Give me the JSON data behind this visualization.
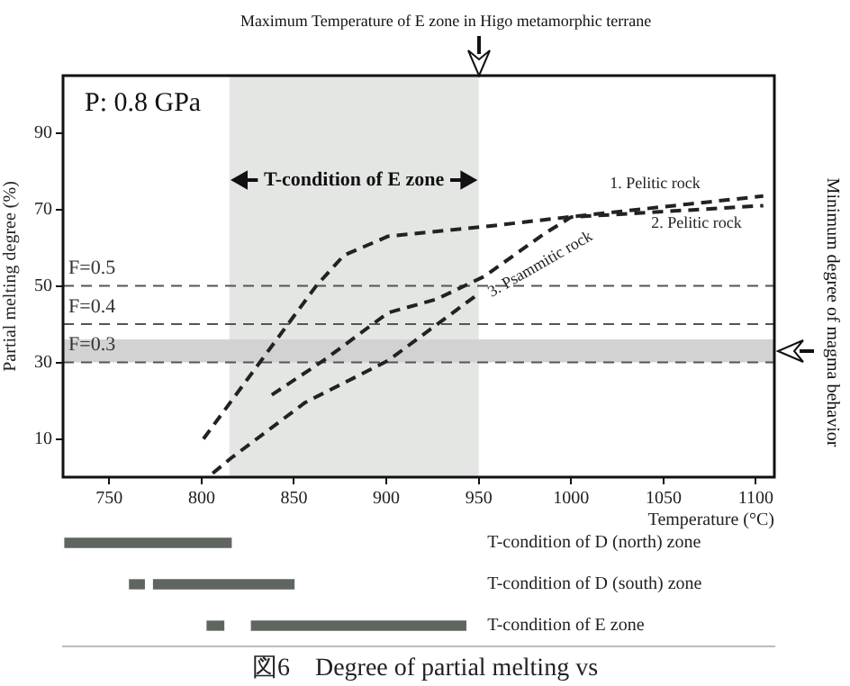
{
  "chart_data": [
    {
      "type": "line",
      "xlabel": "Temperature (°C)",
      "ylabel": "Partial melting degree (%)",
      "xlim": [
        725,
        1110
      ],
      "xticks": [
        750,
        800,
        850,
        900,
        950,
        1000,
        1050,
        1100
      ],
      "ylim": [
        0,
        105
      ],
      "yticks": [
        10,
        30,
        50,
        70,
        90
      ],
      "grid": false,
      "legend": false,
      "marker": "none",
      "line_style": "dashed",
      "series": [
        {
          "name": "1. Pelitic rock",
          "color": "#222222",
          "x": [
            801,
            862,
            877,
            901,
            953,
            998,
            1104
          ],
          "values": [
            10,
            50,
            58,
            63,
            65.5,
            68,
            73.5
          ]
        },
        {
          "name": "2. Pelitic rock",
          "color": "#222222",
          "x": [
            838,
            866,
            901,
            927,
            953,
            985,
            1000,
            1104
          ],
          "values": [
            21.5,
            30.5,
            43,
            46.5,
            52.5,
            63.5,
            68,
            71
          ]
        },
        {
          "name": "3. Psammitic rock",
          "color": "#222222",
          "x": [
            806,
            816,
            856,
            901,
            950
          ],
          "values": [
            1,
            5,
            19.5,
            30.5,
            48
          ]
        }
      ],
      "bands": [
        {
          "axis": "x",
          "from": 815,
          "to": 950,
          "label": "T-condition of E zone",
          "color": "#e4e6e4"
        },
        {
          "axis": "y",
          "from": 30,
          "to": 36,
          "color": "#d2d2d2"
        }
      ],
      "ref_lines": [
        {
          "axis": "y",
          "value": 50,
          "color": "#555555",
          "line_style": "dashed"
        },
        {
          "axis": "y",
          "value": 40,
          "color": "#555555",
          "line_style": "dashed"
        },
        {
          "axis": "y",
          "value": 30,
          "color": "#555555",
          "line_style": "dashed"
        }
      ],
      "annotations": [
        "P: 0.8 GPa",
        "Maximum Temperature of E zone in Higo metamorphic terrane",
        "Minimum degree of magma behavior",
        {
          "text": "F=0.5",
          "y": 50
        },
        {
          "text": "F=0.4",
          "y": 40
        },
        {
          "text": "F=0.3",
          "y": 30
        }
      ]
    },
    {
      "type": "bar",
      "orientation": "horizontal",
      "categories": [
        "T-condition of D (north) zone",
        "T-condition of D (south) zone",
        "T-condition of E zone"
      ],
      "xlim": [
        725,
        1110
      ],
      "tick_labels": "y",
      "series": [
        {
          "color": "#5f6660",
          "values": [
            null,
            8,
            9
          ],
          "base": [
            null,
            761,
            803
          ]
        },
        {
          "color": "#5f6660",
          "values": [
            90,
            76,
            116
          ],
          "base": [
            726,
            774,
            827
          ]
        }
      ],
      "annotations": [
        "図6　Degree of partial melting vs"
      ]
    }
  ]
}
